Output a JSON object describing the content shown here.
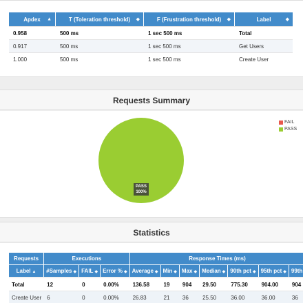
{
  "apdex": {
    "headers": [
      {
        "label": "Apdex",
        "sort": "▲"
      },
      {
        "label": "T (Toleration threshold)",
        "sort": "◆"
      },
      {
        "label": "F (Frustration threshold)",
        "sort": "◆"
      },
      {
        "label": "Label",
        "sort": "◆"
      }
    ],
    "rows": [
      {
        "apdex": "0.958",
        "t": "500 ms",
        "f": "1 sec 500 ms",
        "label": "Total"
      },
      {
        "apdex": "0.917",
        "t": "500 ms",
        "f": "1 sec 500 ms",
        "label": "Get Users"
      },
      {
        "apdex": "1.000",
        "t": "500 ms",
        "f": "1 sec 500 ms",
        "label": "Create User"
      }
    ]
  },
  "summary": {
    "title": "Requests Summary",
    "legend": [
      {
        "label": "FAIL",
        "color": "#e8584d"
      },
      {
        "label": "PASS",
        "color": "#9acd32"
      }
    ],
    "pie_label_line1": "PASS",
    "pie_label_line2": "100%"
  },
  "chart_data": {
    "type": "pie",
    "title": "Requests Summary",
    "slices": [
      {
        "label": "FAIL",
        "value": 0,
        "color": "#e8584d"
      },
      {
        "label": "PASS",
        "value": 100,
        "color": "#9acd32"
      }
    ],
    "legend_position": "top-right"
  },
  "statistics": {
    "title": "Statistics",
    "group_headers": {
      "requests": "Requests",
      "executions": "Executions",
      "response_times": "Response Times (ms)"
    },
    "columns": {
      "label": "Label",
      "samples": "#Samples",
      "fail": "FAIL",
      "error": "Error %",
      "average": "Average",
      "min": "Min",
      "max": "Max",
      "median": "Median",
      "p90": "90th pct",
      "p95": "95th pct",
      "p99": "99th"
    },
    "rows": [
      {
        "label": "Total",
        "samples": "12",
        "fail": "0",
        "error": "0.00%",
        "average": "136.58",
        "min": "19",
        "max": "904",
        "median": "29.50",
        "p90": "775.30",
        "p95": "904.00",
        "p99": "904"
      },
      {
        "label": "Create User",
        "samples": "6",
        "fail": "0",
        "error": "0.00%",
        "average": "26.83",
        "min": "21",
        "max": "36",
        "median": "25.50",
        "p90": "36.00",
        "p95": "36.00",
        "p99": "36"
      }
    ]
  }
}
